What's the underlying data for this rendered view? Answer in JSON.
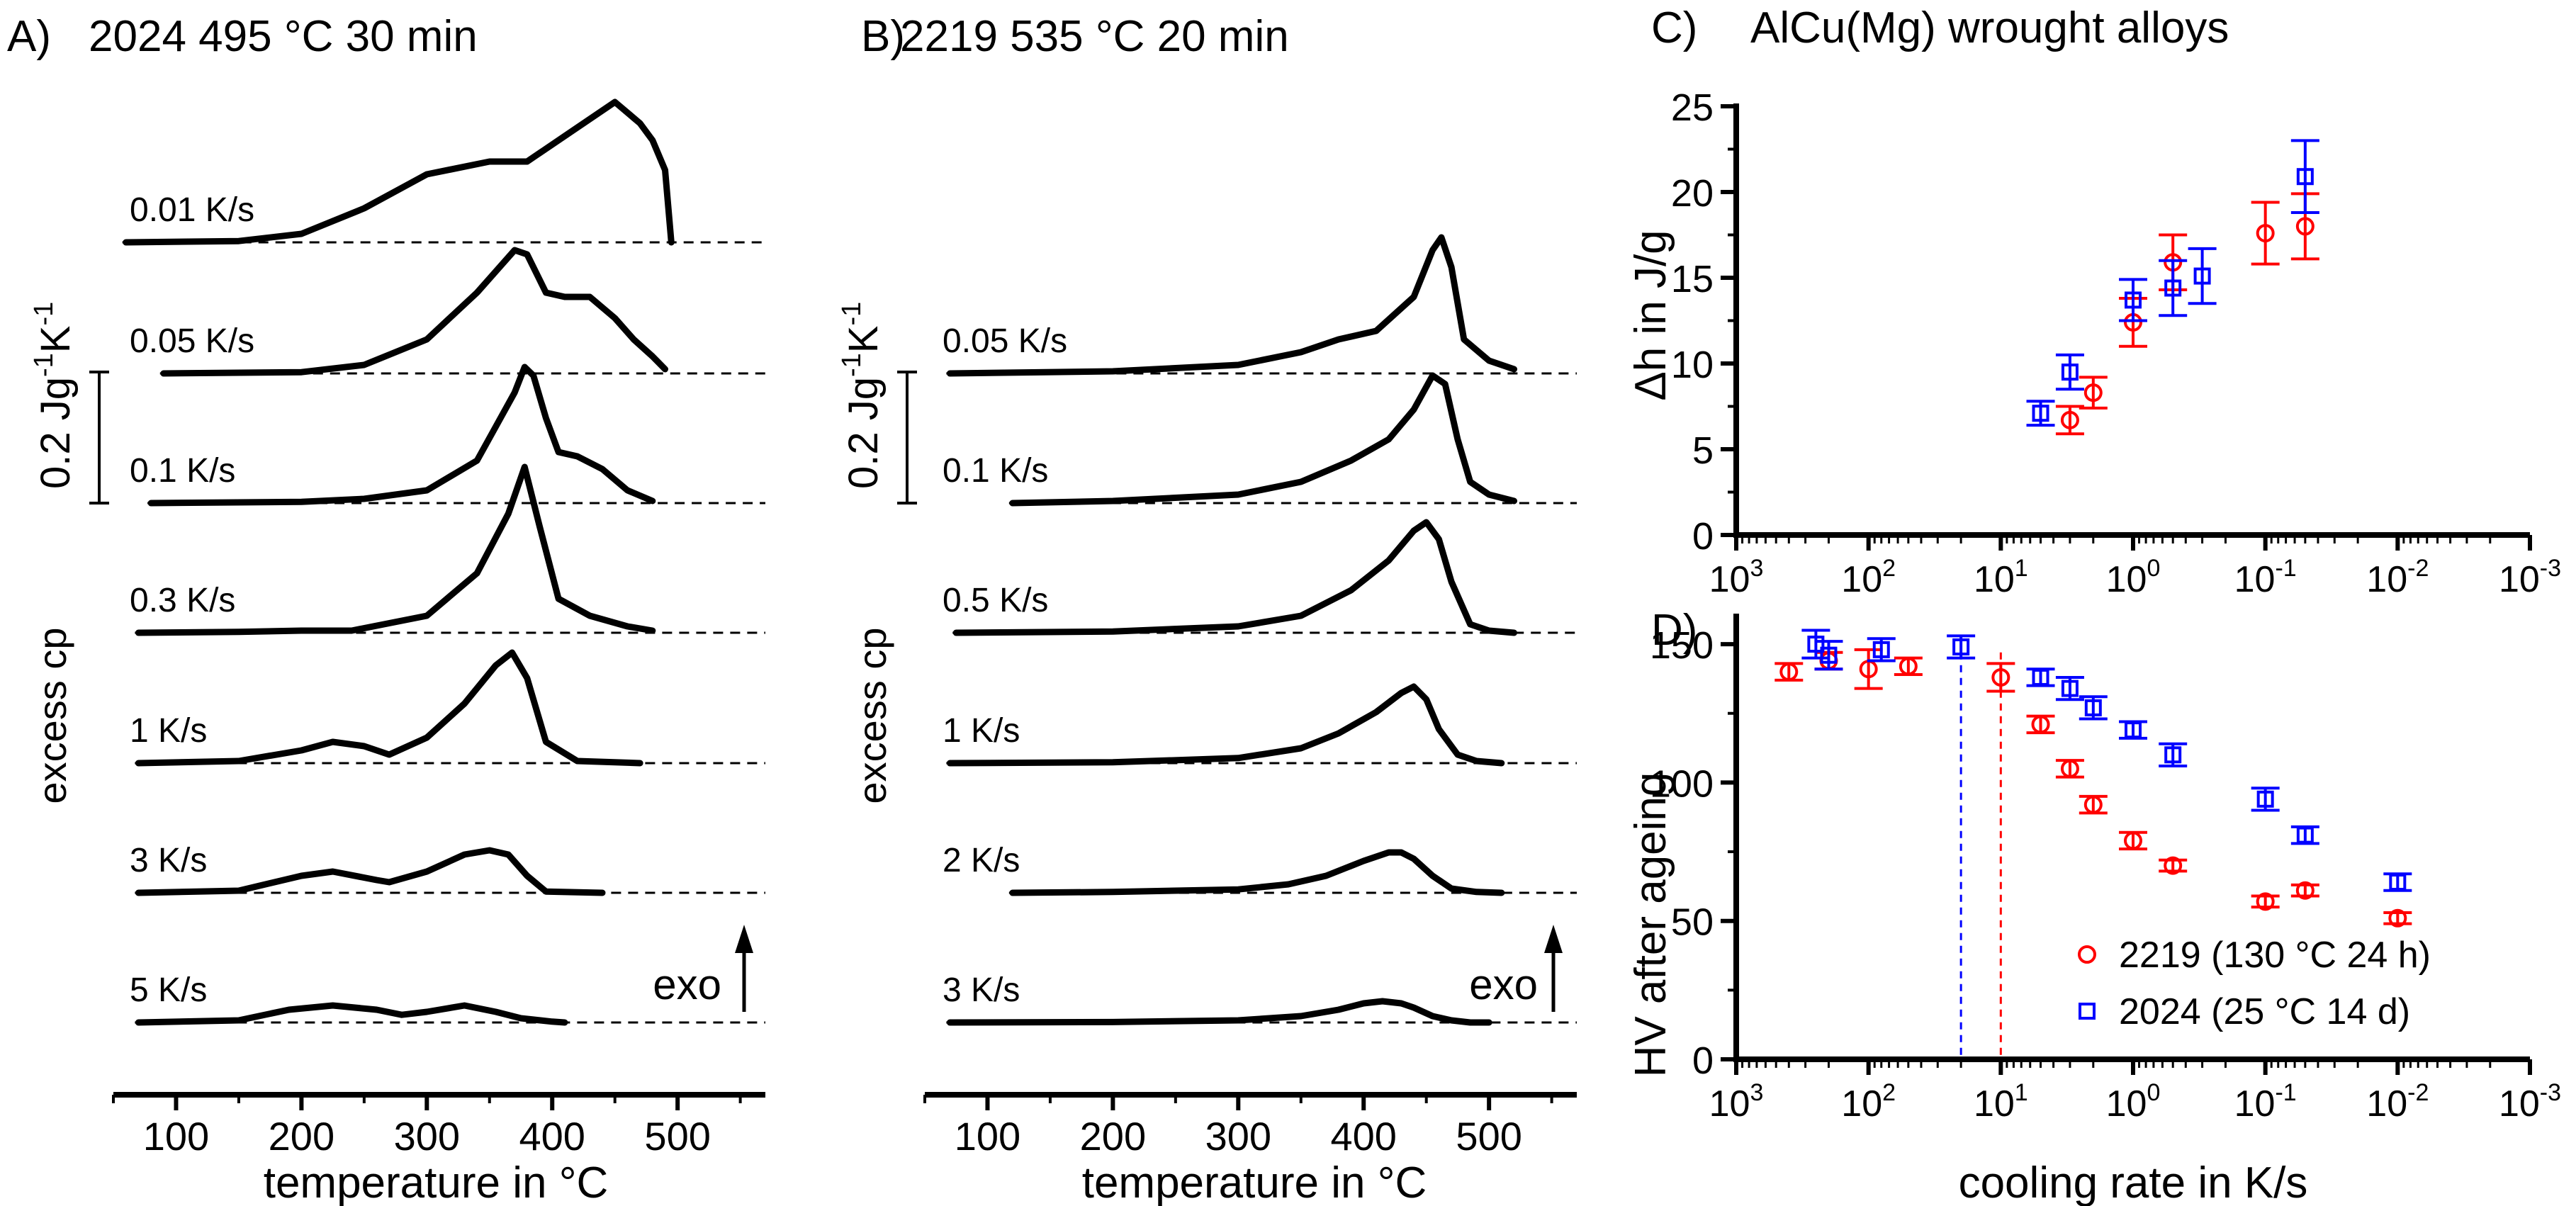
{
  "chart_data": [
    {
      "panel": "A",
      "type": "line",
      "panel_label": "A)",
      "title": "2024 495 °C  30 min",
      "xlabel": "temperature in °C",
      "ylabel": "excess cp",
      "xlim": [
        50,
        570
      ],
      "xticks": [
        100,
        200,
        300,
        400,
        500
      ],
      "scalebar_label": "0.2 Jg-1K-1",
      "arrow_label": "exo",
      "series": [
        {
          "name": "0.01 K/s",
          "x": [
            60,
            150,
            200,
            250,
            300,
            350,
            380,
            410,
            450,
            470,
            480,
            490,
            495
          ],
          "y": [
            0,
            0.003,
            0.02,
            0.08,
            0.16,
            0.19,
            0.19,
            0.25,
            0.33,
            0.28,
            0.24,
            0.17,
            0
          ]
        },
        {
          "name": "0.05 K/s",
          "x": [
            90,
            200,
            250,
            300,
            340,
            370,
            380,
            395,
            410,
            430,
            450,
            465,
            480,
            490
          ],
          "y": [
            0,
            0.003,
            0.02,
            0.08,
            0.19,
            0.29,
            0.28,
            0.19,
            0.18,
            0.18,
            0.13,
            0.08,
            0.04,
            0.01
          ]
        },
        {
          "name": "0.1 K/s",
          "x": [
            80,
            200,
            250,
            300,
            340,
            370,
            378,
            385,
            395,
            405,
            420,
            440,
            460,
            480
          ],
          "y": [
            0,
            0.003,
            0.01,
            0.03,
            0.1,
            0.26,
            0.32,
            0.3,
            0.2,
            0.12,
            0.11,
            0.08,
            0.03,
            0.005
          ]
        },
        {
          "name": "0.3 K/s",
          "x": [
            70,
            150,
            200,
            240,
            300,
            340,
            365,
            378,
            390,
            405,
            430,
            460,
            480
          ],
          "y": [
            0,
            0.002,
            0.005,
            0.005,
            0.04,
            0.14,
            0.28,
            0.39,
            0.25,
            0.08,
            0.04,
            0.015,
            0.005
          ]
        },
        {
          "name": "1 K/s",
          "x": [
            70,
            150,
            200,
            225,
            250,
            270,
            300,
            330,
            355,
            368,
            380,
            395,
            420,
            470
          ],
          "y": [
            0,
            0.005,
            0.03,
            0.05,
            0.04,
            0.02,
            0.06,
            0.14,
            0.23,
            0.26,
            0.2,
            0.05,
            0.005,
            0
          ]
        },
        {
          "name": "3 K/s",
          "x": [
            70,
            150,
            200,
            225,
            260,
            270,
            300,
            330,
            350,
            365,
            380,
            395,
            440
          ],
          "y": [
            0,
            0.005,
            0.04,
            0.05,
            0.03,
            0.025,
            0.05,
            0.09,
            0.1,
            0.09,
            0.04,
            0.003,
            0
          ]
        },
        {
          "name": "5 K/s",
          "x": [
            70,
            150,
            190,
            225,
            260,
            280,
            300,
            330,
            355,
            375,
            400,
            410
          ],
          "y": [
            0,
            0.005,
            0.03,
            0.04,
            0.03,
            0.018,
            0.025,
            0.04,
            0.025,
            0.01,
            0.002,
            0
          ]
        }
      ]
    },
    {
      "panel": "B",
      "type": "line",
      "panel_label": "B)",
      "title": "2219 535 °C  20 min",
      "xlabel": "temperature in °C",
      "ylabel": "excess cp",
      "xlim": [
        50,
        570
      ],
      "xticks": [
        100,
        200,
        300,
        400,
        500
      ],
      "scalebar_label": "0.2 Jg-1K-1",
      "arrow_label": "exo",
      "series": [
        {
          "name": "0.05 K/s",
          "x": [
            70,
            200,
            300,
            350,
            380,
            410,
            440,
            455,
            462,
            470,
            480,
            500,
            520
          ],
          "y": [
            0,
            0.005,
            0.02,
            0.05,
            0.08,
            0.1,
            0.18,
            0.29,
            0.32,
            0.25,
            0.08,
            0.03,
            0.01
          ]
        },
        {
          "name": "0.1 K/s",
          "x": [
            120,
            200,
            300,
            350,
            390,
            420,
            440,
            455,
            465,
            475,
            485,
            500,
            520
          ],
          "y": [
            0,
            0.005,
            0.02,
            0.05,
            0.1,
            0.15,
            0.22,
            0.3,
            0.28,
            0.15,
            0.05,
            0.02,
            0.005
          ]
        },
        {
          "name": "0.5 K/s",
          "x": [
            75,
            200,
            300,
            350,
            390,
            420,
            440,
            450,
            460,
            470,
            485,
            500,
            520
          ],
          "y": [
            0,
            0.003,
            0.015,
            0.04,
            0.1,
            0.17,
            0.24,
            0.26,
            0.22,
            0.12,
            0.02,
            0.005,
            0
          ]
        },
        {
          "name": "1 K/s",
          "x": [
            70,
            200,
            300,
            350,
            380,
            410,
            430,
            440,
            450,
            460,
            475,
            490,
            510
          ],
          "y": [
            0,
            0.002,
            0.012,
            0.035,
            0.07,
            0.12,
            0.165,
            0.18,
            0.15,
            0.08,
            0.02,
            0.005,
            0
          ]
        },
        {
          "name": "2 K/s",
          "x": [
            120,
            200,
            300,
            340,
            370,
            400,
            420,
            430,
            440,
            455,
            470,
            490,
            510
          ],
          "y": [
            0,
            0.002,
            0.008,
            0.02,
            0.04,
            0.075,
            0.095,
            0.095,
            0.08,
            0.04,
            0.01,
            0.002,
            0
          ]
        },
        {
          "name": "3 K/s",
          "x": [
            70,
            200,
            300,
            350,
            380,
            400,
            415,
            430,
            440,
            455,
            470,
            485,
            500
          ],
          "y": [
            0,
            0.001,
            0.005,
            0.015,
            0.03,
            0.045,
            0.05,
            0.045,
            0.035,
            0.015,
            0.005,
            0,
            0
          ]
        }
      ]
    },
    {
      "panel": "C",
      "type": "scatter",
      "panel_label": "C)",
      "title": "AlCu(Mg) wrought alloys",
      "ylabel": "Δh in J/g",
      "x_scale": "log",
      "x_reversed": true,
      "xlim": [
        1000,
        0.001
      ],
      "ylim": [
        0,
        25
      ],
      "yticks": [
        0,
        5,
        10,
        15,
        20,
        25
      ],
      "xtick_labels": [
        "10^3",
        "10^2",
        "10^1",
        "10^0",
        "10^-1",
        "10^-2",
        "10^-3"
      ],
      "series": [
        {
          "name": "2219",
          "color": "#ff0000",
          "marker": "circle",
          "points": [
            {
              "x": 3,
              "y": 6.7,
              "err": 0.8
            },
            {
              "x": 2,
              "y": 8.3,
              "err": 0.9
            },
            {
              "x": 1,
              "y": 12.4,
              "err": 1.4
            },
            {
              "x": 0.5,
              "y": 15.9,
              "err": 1.6
            },
            {
              "x": 0.1,
              "y": 17.6,
              "err": 1.8
            },
            {
              "x": 0.05,
              "y": 18.0,
              "err": 1.9
            }
          ]
        },
        {
          "name": "2024",
          "color": "#0000ff",
          "marker": "square",
          "points": [
            {
              "x": 5,
              "y": 7.1,
              "err": 0.7
            },
            {
              "x": 3,
              "y": 9.5,
              "err": 1.0
            },
            {
              "x": 1,
              "y": 13.7,
              "err": 1.2
            },
            {
              "x": 0.5,
              "y": 14.4,
              "err": 1.6
            },
            {
              "x": 0.3,
              "y": 15.1,
              "err": 1.6
            },
            {
              "x": 0.05,
              "y": 20.9,
              "err": 2.1
            }
          ]
        }
      ]
    },
    {
      "panel": "D",
      "type": "scatter",
      "panel_label": "D)",
      "xlabel": "cooling rate in K/s",
      "ylabel": "HV after ageing",
      "x_scale": "log",
      "x_reversed": true,
      "xlim": [
        1000,
        0.001
      ],
      "ylim": [
        0,
        160
      ],
      "yticks": [
        0,
        50,
        100,
        150
      ],
      "xtick_labels": [
        "10^3",
        "10^2",
        "10^1",
        "10^0",
        "10^-1",
        "10^-2",
        "10^-3"
      ],
      "legend_position": "bottom-right",
      "series": [
        {
          "name": "2219 (130 °C 24 h)",
          "color": "#ff0000",
          "marker": "circle",
          "critical_rate": 10,
          "points": [
            {
              "x": 400,
              "y": 140,
              "err": 3
            },
            {
              "x": 200,
              "y": 144,
              "err": 3
            },
            {
              "x": 100,
              "y": 141,
              "err": 7
            },
            {
              "x": 50,
              "y": 142,
              "err": 3
            },
            {
              "x": 10,
              "y": 138,
              "err": 5
            },
            {
              "x": 5,
              "y": 121,
              "err": 3
            },
            {
              "x": 3,
              "y": 105,
              "err": 3
            },
            {
              "x": 2,
              "y": 92,
              "err": 3
            },
            {
              "x": 1,
              "y": 79,
              "err": 3
            },
            {
              "x": 0.5,
              "y": 70,
              "err": 2
            },
            {
              "x": 0.1,
              "y": 57,
              "err": 2
            },
            {
              "x": 0.05,
              "y": 61,
              "err": 2
            },
            {
              "x": 0.01,
              "y": 51,
              "err": 2
            }
          ]
        },
        {
          "name": "2024 (25 °C 14 d)",
          "color": "#0000ff",
          "marker": "square",
          "critical_rate": 20,
          "points": [
            {
              "x": 250,
              "y": 150,
              "err": 5
            },
            {
              "x": 200,
              "y": 146,
              "err": 5
            },
            {
              "x": 80,
              "y": 148,
              "err": 4
            },
            {
              "x": 20,
              "y": 149,
              "err": 4
            },
            {
              "x": 5,
              "y": 138,
              "err": 3
            },
            {
              "x": 3,
              "y": 134,
              "err": 4
            },
            {
              "x": 2,
              "y": 127,
              "err": 4
            },
            {
              "x": 1,
              "y": 119,
              "err": 3
            },
            {
              "x": 0.5,
              "y": 110,
              "err": 4
            },
            {
              "x": 0.1,
              "y": 94,
              "err": 4
            },
            {
              "x": 0.05,
              "y": 81,
              "err": 3
            },
            {
              "x": 0.01,
              "y": 64,
              "err": 3
            }
          ]
        }
      ]
    }
  ]
}
